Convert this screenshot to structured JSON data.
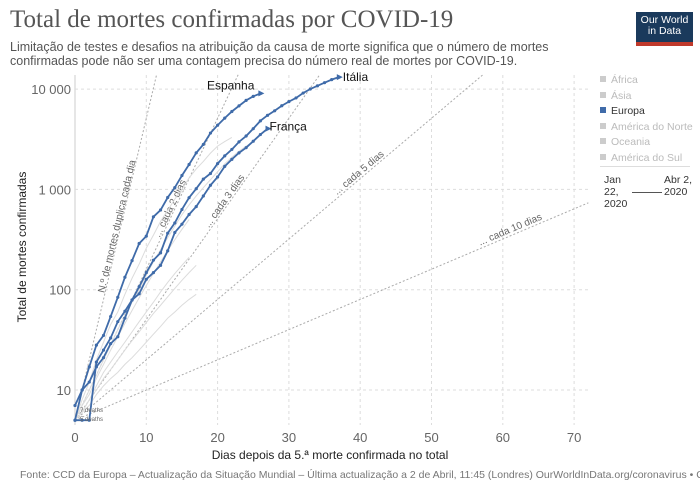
{
  "header": {
    "title": "Total de mortes confirmadas por COVID-19",
    "subtitle": "Limitação de testes e desafios na atribuição da causa de morte significa que o número de mortes confirmadas pode não ser uma contagem precisa do número real de mortes por COVID-19.",
    "logo": "Our World in Data"
  },
  "legend": {
    "items": [
      {
        "label": "África",
        "active": false
      },
      {
        "label": "Ásia",
        "active": false
      },
      {
        "label": "Europa",
        "active": true
      },
      {
        "label": "América do Norte",
        "active": false
      },
      {
        "label": "Oceania",
        "active": false
      },
      {
        "label": "América do Sul",
        "active": false
      }
    ]
  },
  "timeline": {
    "start": "Jan 22, 2020",
    "end": "Abr 2, 2020"
  },
  "footer": "Fonte: CCD da Europa – Actualização da Situação Mundial – Última actualização a 2 de Abril, 11:45 (Londres)  OurWorldInData.org/coronavirus • CC BY",
  "colors": {
    "highlight": "#3f6ba9",
    "background_series": "#dcdcdc",
    "grid": "#ddd"
  },
  "chart_data": {
    "type": "line",
    "xlabel": "Dias depois da 5.ª morte confirmada no total",
    "ylabel": "Total de mortes confirmadas",
    "xlim": [
      0,
      72
    ],
    "ylim": [
      5,
      14000
    ],
    "yscale": "log",
    "xticks": [
      "0",
      "10",
      "20",
      "30",
      "40",
      "50",
      "60",
      "70"
    ],
    "yticks": [
      {
        "v": 10,
        "label": "10"
      },
      {
        "v": 100,
        "label": "100"
      },
      {
        "v": 1000,
        "label": "1 000"
      },
      {
        "v": 10000,
        "label": "10 000"
      }
    ],
    "grid": true,
    "legend_placement": "right",
    "series": [
      {
        "name": "Itália",
        "highlight": true,
        "values": [
          7,
          10,
          12,
          17,
          21,
          29,
          34,
          52,
          79,
          107,
          148,
          197,
          233,
          366,
          463,
          631,
          827,
          1016,
          1266,
          1441,
          1809,
          2158,
          2503,
          2978,
          3405,
          4032,
          4825,
          5476,
          6077,
          6820,
          7503,
          8165,
          9134,
          10023,
          10779,
          11591,
          12428,
          13155
        ]
      },
      {
        "name": "Espanha",
        "highlight": true,
        "values": [
          5,
          10,
          17,
          28,
          35,
          54,
          84,
          133,
          195,
          289,
          342,
          533,
          623,
          830,
          1043,
          1375,
          1772,
          2311,
          2808,
          3647,
          4365,
          5138,
          5982,
          6803,
          7716,
          8464,
          9053
        ]
      },
      {
        "name": "França",
        "highlight": true,
        "values": [
          5,
          5,
          5,
          19,
          25,
          33,
          48,
          61,
          79,
          91,
          127,
          148,
          175,
          244,
          372,
          450,
          562,
          674,
          860,
          1100,
          1331,
          1696,
          1995,
          2314,
          2606,
          3024,
          3523,
          4032
        ]
      },
      {
        "highlight": false,
        "values": [
          5,
          8,
          12,
          20,
          30,
          45,
          60,
          90,
          130,
          180,
          260,
          350,
          480,
          620,
          800,
          1000,
          1300,
          1600,
          1900,
          2300,
          2700,
          3000,
          3300
        ]
      },
      {
        "highlight": false,
        "values": [
          5,
          7,
          10,
          14,
          20,
          28,
          40,
          55,
          75,
          100,
          140,
          190,
          250,
          330,
          430,
          560,
          700,
          860,
          1040,
          1250,
          1500,
          1800,
          2100,
          2400,
          2700,
          3000
        ]
      },
      {
        "highlight": false,
        "values": [
          5,
          6,
          8,
          11,
          15,
          19,
          24,
          30,
          38,
          48,
          60,
          75,
          95,
          118,
          145,
          175,
          210
        ]
      },
      {
        "highlight": false,
        "values": [
          5,
          6,
          7,
          9,
          11,
          13,
          15,
          18,
          21,
          25,
          30,
          36,
          43,
          52,
          60,
          70,
          80,
          90
        ]
      },
      {
        "highlight": false,
        "values": [
          5,
          7,
          9,
          13,
          18,
          25,
          34,
          46,
          62,
          83,
          110,
          145,
          190,
          245,
          315,
          400,
          500
        ]
      },
      {
        "highlight": false,
        "values": [
          5,
          6,
          8,
          10,
          13,
          16,
          20,
          25,
          31,
          38,
          47,
          58,
          70,
          85,
          103,
          124,
          148,
          175
        ]
      }
    ],
    "annotations": [
      {
        "text": "N.º de mortes duplica cada dia",
        "doubling_days": 1
      },
      {
        "text": "... cada 2 dias",
        "doubling_days": 2
      },
      {
        "text": "... cada 3 dias",
        "doubling_days": 3
      },
      {
        "text": "... cada 5 dias",
        "doubling_days": 5
      },
      {
        "text": "... cada 10 dias",
        "doubling_days": 10
      }
    ],
    "start_labels": [
      "7 deaths",
      "5 deaths"
    ]
  }
}
